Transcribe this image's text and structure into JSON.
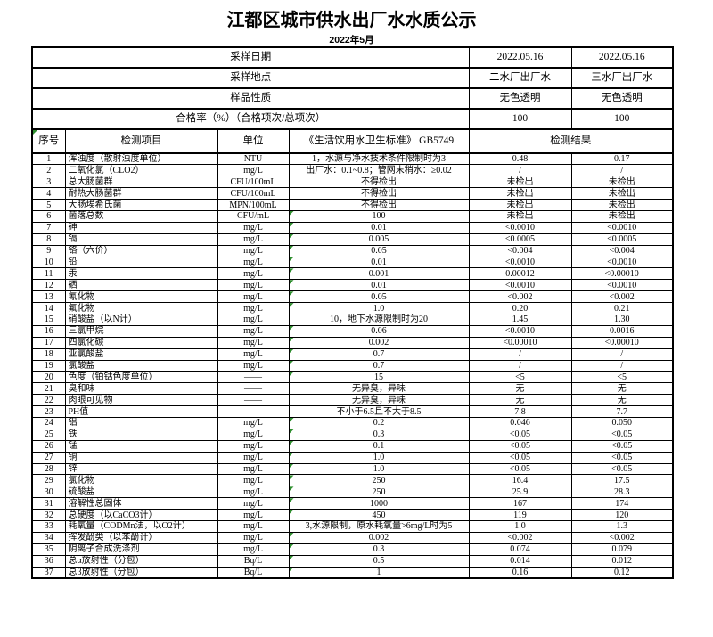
{
  "title": "江都区城市供水出厂水水质公示",
  "subtitle": "2022年5月",
  "colors": {
    "border": "#000000",
    "flag_green": "#2f8f2f",
    "text": "#000000",
    "page_background": "#ffffff"
  },
  "table": {
    "info_rows": [
      {
        "label": "采样日期",
        "plant2": "2022.05.16",
        "plant3": "2022.05.16"
      },
      {
        "label": "采样地点",
        "plant2": "二水厂出厂水",
        "plant3": "三水厂出厂水"
      },
      {
        "label": "样品性质",
        "plant2": "无色透明",
        "plant3": "无色透明"
      },
      {
        "label": "合格率（%）（合格项次/总项次）",
        "plant2": "100",
        "plant3": "100"
      }
    ],
    "header": {
      "seq": "序号",
      "item": "检测项目",
      "unit": "单位",
      "standard": "《生活饮用水卫生标准》 GB5749",
      "result": "检测结果"
    },
    "rows": [
      {
        "seq": "1",
        "item": "浑浊度（散射浊度单位）",
        "unit": "NTU",
        "standard": "1，水源与净水技术条件限制时为3",
        "r1": "0.48",
        "r2": "0.17",
        "flag": false
      },
      {
        "seq": "2",
        "item": "二氧化氯（CLO2）",
        "unit": "mg/L",
        "standard": "出厂水：0.1~0.8；管网末稍水：≥0.02",
        "r1": "/",
        "r2": "/",
        "flag": false
      },
      {
        "seq": "3",
        "item": "总大肠菌群",
        "unit": "CFU/100mL",
        "standard": "不得检出",
        "r1": "未检出",
        "r2": "未检出",
        "flag": false
      },
      {
        "seq": "4",
        "item": "耐热大肠菌群",
        "unit": "CFU/100mL",
        "standard": "不得检出",
        "r1": "未检出",
        "r2": "未检出",
        "flag": false
      },
      {
        "seq": "5",
        "item": "大肠埃希氏菌",
        "unit": "MPN/100mL",
        "standard": "不得检出",
        "r1": "未检出",
        "r2": "未检出",
        "flag": false
      },
      {
        "seq": "6",
        "item": "菌落总数",
        "unit": "CFU/mL",
        "standard": "100",
        "r1": "未检出",
        "r2": "未检出",
        "flag": true
      },
      {
        "seq": "7",
        "item": "砷",
        "unit": "mg/L",
        "standard": "0.01",
        "r1": "<0.0010",
        "r2": "<0.0010",
        "flag": true
      },
      {
        "seq": "8",
        "item": "镉",
        "unit": "mg/L",
        "standard": "0.005",
        "r1": "<0.0005",
        "r2": "<0.0005",
        "flag": true
      },
      {
        "seq": "9",
        "item": "铬（六价）",
        "unit": "mg/L",
        "standard": "0.05",
        "r1": "<0.004",
        "r2": "<0.004",
        "flag": true
      },
      {
        "seq": "10",
        "item": "铅",
        "unit": "mg/L",
        "standard": "0.01",
        "r1": "<0.0010",
        "r2": "<0.0010",
        "flag": true
      },
      {
        "seq": "11",
        "item": "汞",
        "unit": "mg/L",
        "standard": "0.001",
        "r1": "0.00012",
        "r2": "<0.00010",
        "flag": true
      },
      {
        "seq": "12",
        "item": "硒",
        "unit": "mg/L",
        "standard": "0.01",
        "r1": "<0.0010",
        "r2": "<0.0010",
        "flag": true
      },
      {
        "seq": "13",
        "item": "氰化物",
        "unit": "mg/L",
        "standard": "0.05",
        "r1": "<0.002",
        "r2": "<0.002",
        "flag": true
      },
      {
        "seq": "14",
        "item": "氟化物",
        "unit": "mg/L",
        "standard": "1.0",
        "r1": "0.20",
        "r2": "0.21",
        "flag": true
      },
      {
        "seq": "15",
        "item": "硝酸盐（以N计）",
        "unit": "mg/L",
        "standard": "10，地下水源限制时为20",
        "r1": "1.45",
        "r2": "1.30",
        "flag": false
      },
      {
        "seq": "16",
        "item": "三氯甲烷",
        "unit": "mg/L",
        "standard": "0.06",
        "r1": "<0.0010",
        "r2": "0.0016",
        "flag": true
      },
      {
        "seq": "17",
        "item": "四氯化碳",
        "unit": "mg/L",
        "standard": "0.002",
        "r1": "<0.00010",
        "r2": "<0.00010",
        "flag": true
      },
      {
        "seq": "18",
        "item": "亚氯酸盐",
        "unit": "mg/L",
        "standard": "0.7",
        "r1": "/",
        "r2": "/",
        "flag": true
      },
      {
        "seq": "19",
        "item": "氯酸盐",
        "unit": "mg/L",
        "standard": "0.7",
        "r1": "/",
        "r2": "/",
        "flag": true
      },
      {
        "seq": "20",
        "item": "色度（铂钴色度单位）",
        "unit": "——",
        "standard": "15",
        "r1": "<5",
        "r2": "<5",
        "flag": true
      },
      {
        "seq": "21",
        "item": "臭和味",
        "unit": "——",
        "standard": "无异臭，异味",
        "r1": "无",
        "r2": "无",
        "flag": false
      },
      {
        "seq": "22",
        "item": "肉眼可见物",
        "unit": "——",
        "standard": "无异臭，异味",
        "r1": "无",
        "r2": "无",
        "flag": false
      },
      {
        "seq": "23",
        "item": "PH值",
        "unit": "——",
        "standard": "不小于6.5且不大于8.5",
        "r1": "7.8",
        "r2": "7.7",
        "flag": false
      },
      {
        "seq": "24",
        "item": "铝",
        "unit": "mg/L",
        "standard": "0.2",
        "r1": "0.046",
        "r2": "0.050",
        "flag": true
      },
      {
        "seq": "25",
        "item": "铁",
        "unit": "mg/L",
        "standard": "0.3",
        "r1": "<0.05",
        "r2": "<0.05",
        "flag": true
      },
      {
        "seq": "26",
        "item": "锰",
        "unit": "mg/L",
        "standard": "0.1",
        "r1": "<0.05",
        "r2": "<0.05",
        "flag": true
      },
      {
        "seq": "27",
        "item": "铜",
        "unit": "mg/L",
        "standard": "1.0",
        "r1": "<0.05",
        "r2": "<0.05",
        "flag": true
      },
      {
        "seq": "28",
        "item": "锌",
        "unit": "mg/L",
        "standard": "1.0",
        "r1": "<0.05",
        "r2": "<0.05",
        "flag": true
      },
      {
        "seq": "29",
        "item": "氯化物",
        "unit": "mg/L",
        "standard": "250",
        "r1": "16.4",
        "r2": "17.5",
        "flag": true
      },
      {
        "seq": "30",
        "item": "硫酸盐",
        "unit": "mg/L",
        "standard": "250",
        "r1": "25.9",
        "r2": "28.3",
        "flag": true
      },
      {
        "seq": "31",
        "item": "溶解性总固体",
        "unit": "mg/L",
        "standard": "1000",
        "r1": "167",
        "r2": "174",
        "flag": true
      },
      {
        "seq": "32",
        "item": "总硬度（以CaCO3计）",
        "unit": "mg/L",
        "standard": "450",
        "r1": "119",
        "r2": "120",
        "flag": true
      },
      {
        "seq": "33",
        "item": "耗氧量（CODMn法，以O2计）",
        "unit": "mg/L",
        "standard": "3,水源限制，原水耗氧量>6mg/L时为5",
        "r1": "1.0",
        "r2": "1.3",
        "flag": false
      },
      {
        "seq": "34",
        "item": "挥发酚类（以苯酚计）",
        "unit": "mg/L",
        "standard": "0.002",
        "r1": "<0.002",
        "r2": "<0.002",
        "flag": true
      },
      {
        "seq": "35",
        "item": "阴离子合成洗涤剂",
        "unit": "mg/L",
        "standard": "0.3",
        "r1": "0.074",
        "r2": "0.079",
        "flag": true
      },
      {
        "seq": "36",
        "item": "总α放射性（分包）",
        "unit": "Bq/L",
        "standard": "0.5",
        "r1": "0.014",
        "r2": "0.012",
        "flag": true
      },
      {
        "seq": "37",
        "item": "总β放射性（分包）",
        "unit": "Bq/L",
        "standard": "1",
        "r1": "0.16",
        "r2": "0.12",
        "flag": true
      }
    ]
  }
}
